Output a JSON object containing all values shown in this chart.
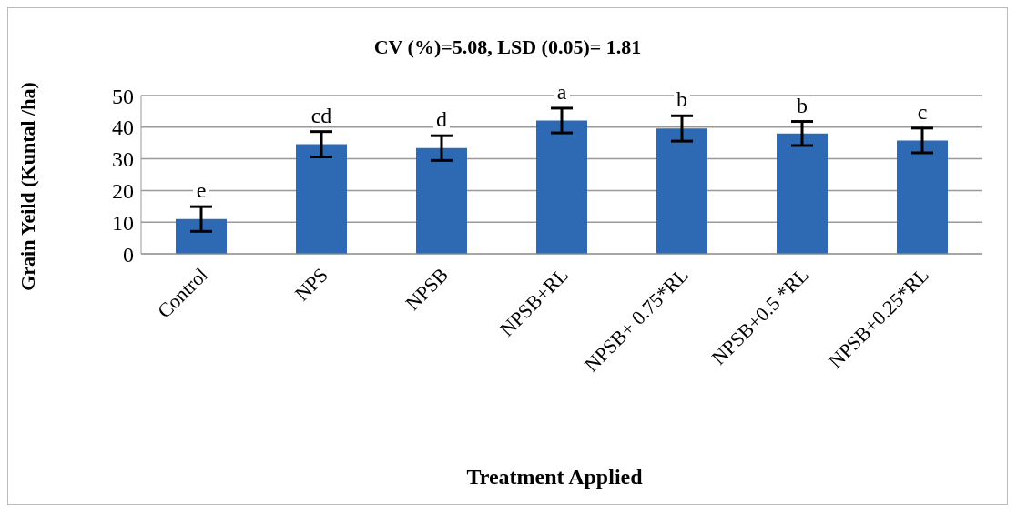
{
  "chart_data": {
    "type": "bar",
    "title": "CV (%)=5.08, LSD (0.05)= 1.81",
    "xlabel": "Treatment Applied",
    "ylabel": "Grain Yeild (Kuntal /ha)",
    "categories": [
      "Control",
      "NPS",
      "NPSB",
      "NPSB+RL",
      "NPSB+ 0.75*RL",
      "NPSB+0.5 *RL",
      "NPSB+0.25*RL"
    ],
    "values": [
      11.0,
      34.6,
      33.4,
      42.1,
      39.6,
      38.0,
      35.8
    ],
    "errors": [
      3.9,
      4.0,
      3.9,
      3.9,
      4.0,
      3.8,
      3.9
    ],
    "color": "#2e69b3",
    "ylim": [
      0,
      50
    ],
    "yticks": [
      0,
      10,
      20,
      30,
      40,
      50
    ],
    "grid": "y",
    "legend": false,
    "annotations": [
      {
        "text": "e",
        "x": "Control",
        "y": 14.9
      },
      {
        "text": "cd",
        "x": "NPS",
        "y": 38.6
      },
      {
        "text": "d",
        "x": "NPSB",
        "y": 37.3
      },
      {
        "text": "a",
        "x": "NPSB+RL",
        "y": 46.0
      },
      {
        "text": "b",
        "x": "NPSB+ 0.75*RL",
        "y": 43.6
      },
      {
        "text": "b",
        "x": "NPSB+0.5 *RL",
        "y": 41.8
      },
      {
        "text": "c",
        "x": "NPSB+0.25*RL",
        "y": 39.7
      }
    ]
  }
}
